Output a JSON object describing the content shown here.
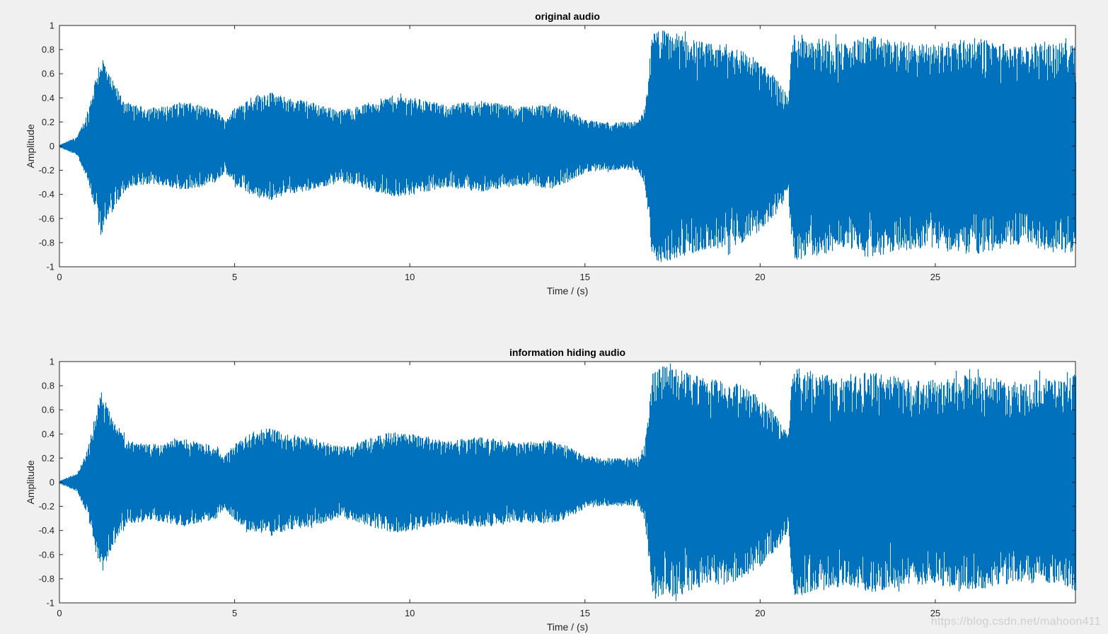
{
  "watermark": "https://blog.csdn.net/mahoon411",
  "chart_data": [
    {
      "type": "line",
      "title": "original audio",
      "xlabel": "Time / (s)",
      "ylabel": "Amplitude",
      "xlim": [
        0,
        29
      ],
      "ylim": [
        -1,
        1
      ],
      "xticks": [
        0,
        5,
        10,
        15,
        20,
        25
      ],
      "yticks": [
        -1,
        -0.8,
        -0.6,
        -0.4,
        -0.2,
        0,
        0.2,
        0.4,
        0.6,
        0.8,
        1
      ],
      "grid": false,
      "color": "#0072bd",
      "series": [
        {
          "x": [
            0,
            0.5,
            0.8,
            1.0,
            1.1,
            1.2,
            1.4,
            1.8,
            2.0,
            2.5,
            3.0,
            3.5,
            4.0,
            4.5,
            4.7,
            5.0,
            5.5,
            6.0,
            6.5,
            7.0,
            7.5,
            8.0,
            8.5,
            9.0,
            9.5,
            10.0,
            10.5,
            11.0,
            11.5,
            12.0,
            12.5,
            13.0,
            13.5,
            14.0,
            14.5,
            15.0,
            15.5,
            16.0,
            16.5,
            16.7,
            16.9,
            17.0,
            17.5,
            18.0,
            18.5,
            19.0,
            19.5,
            20.0,
            20.5,
            20.8,
            20.9,
            21.0,
            21.5,
            22.0,
            22.5,
            23.0,
            23.5,
            24.0,
            24.5,
            25.0,
            25.5,
            26.0,
            26.5,
            27.0,
            27.5,
            28.0,
            28.5,
            29.0
          ],
          "y": [
            0.01,
            0.08,
            0.28,
            0.55,
            0.68,
            0.76,
            0.6,
            0.4,
            0.35,
            0.32,
            0.33,
            0.37,
            0.34,
            0.3,
            0.22,
            0.32,
            0.42,
            0.45,
            0.4,
            0.38,
            0.34,
            0.3,
            0.33,
            0.38,
            0.42,
            0.41,
            0.38,
            0.34,
            0.36,
            0.38,
            0.36,
            0.33,
            0.34,
            0.35,
            0.3,
            0.22,
            0.2,
            0.2,
            0.2,
            0.32,
            0.9,
            0.97,
            0.95,
            0.9,
            0.85,
            0.85,
            0.8,
            0.7,
            0.55,
            0.4,
            0.9,
            0.95,
            0.92,
            0.88,
            0.85,
            0.92,
            0.9,
            0.87,
            0.85,
            0.85,
            0.88,
            0.9,
            0.88,
            0.85,
            0.82,
            0.87,
            0.85,
            0.9
          ]
        }
      ]
    },
    {
      "type": "line",
      "title": "information hiding audio",
      "xlabel": "Time / (s)",
      "ylabel": "Amplitude",
      "xlim": [
        0,
        29
      ],
      "ylim": [
        -1,
        1
      ],
      "xticks": [
        0,
        5,
        10,
        15,
        20,
        25
      ],
      "yticks": [
        -1,
        -0.8,
        -0.6,
        -0.4,
        -0.2,
        0,
        0.2,
        0.4,
        0.6,
        0.8,
        1
      ],
      "grid": false,
      "color": "#0072bd",
      "series": [
        {
          "x": [
            0,
            0.5,
            0.8,
            1.0,
            1.1,
            1.2,
            1.4,
            1.8,
            2.0,
            2.5,
            3.0,
            3.5,
            4.0,
            4.5,
            4.7,
            5.0,
            5.5,
            6.0,
            6.5,
            7.0,
            7.5,
            8.0,
            8.5,
            9.0,
            9.5,
            10.0,
            10.5,
            11.0,
            11.5,
            12.0,
            12.5,
            13.0,
            13.5,
            14.0,
            14.5,
            15.0,
            15.5,
            16.0,
            16.5,
            16.7,
            16.9,
            17.0,
            17.5,
            18.0,
            18.5,
            19.0,
            19.5,
            20.0,
            20.5,
            20.8,
            20.9,
            21.0,
            21.5,
            22.0,
            22.5,
            23.0,
            23.5,
            24.0,
            24.5,
            25.0,
            25.5,
            26.0,
            26.5,
            27.0,
            27.5,
            28.0,
            28.5,
            29.0
          ],
          "y": [
            0.01,
            0.08,
            0.28,
            0.55,
            0.68,
            0.76,
            0.6,
            0.4,
            0.35,
            0.32,
            0.33,
            0.37,
            0.34,
            0.3,
            0.22,
            0.32,
            0.42,
            0.45,
            0.4,
            0.38,
            0.34,
            0.3,
            0.33,
            0.38,
            0.42,
            0.41,
            0.38,
            0.34,
            0.36,
            0.38,
            0.36,
            0.33,
            0.34,
            0.35,
            0.3,
            0.22,
            0.2,
            0.2,
            0.2,
            0.32,
            0.9,
            0.97,
            0.95,
            0.9,
            0.85,
            0.85,
            0.8,
            0.7,
            0.55,
            0.4,
            0.9,
            0.95,
            0.92,
            0.88,
            0.85,
            0.92,
            0.9,
            0.87,
            0.85,
            0.85,
            0.88,
            0.9,
            0.88,
            0.85,
            0.82,
            0.87,
            0.85,
            0.9
          ]
        }
      ]
    }
  ]
}
